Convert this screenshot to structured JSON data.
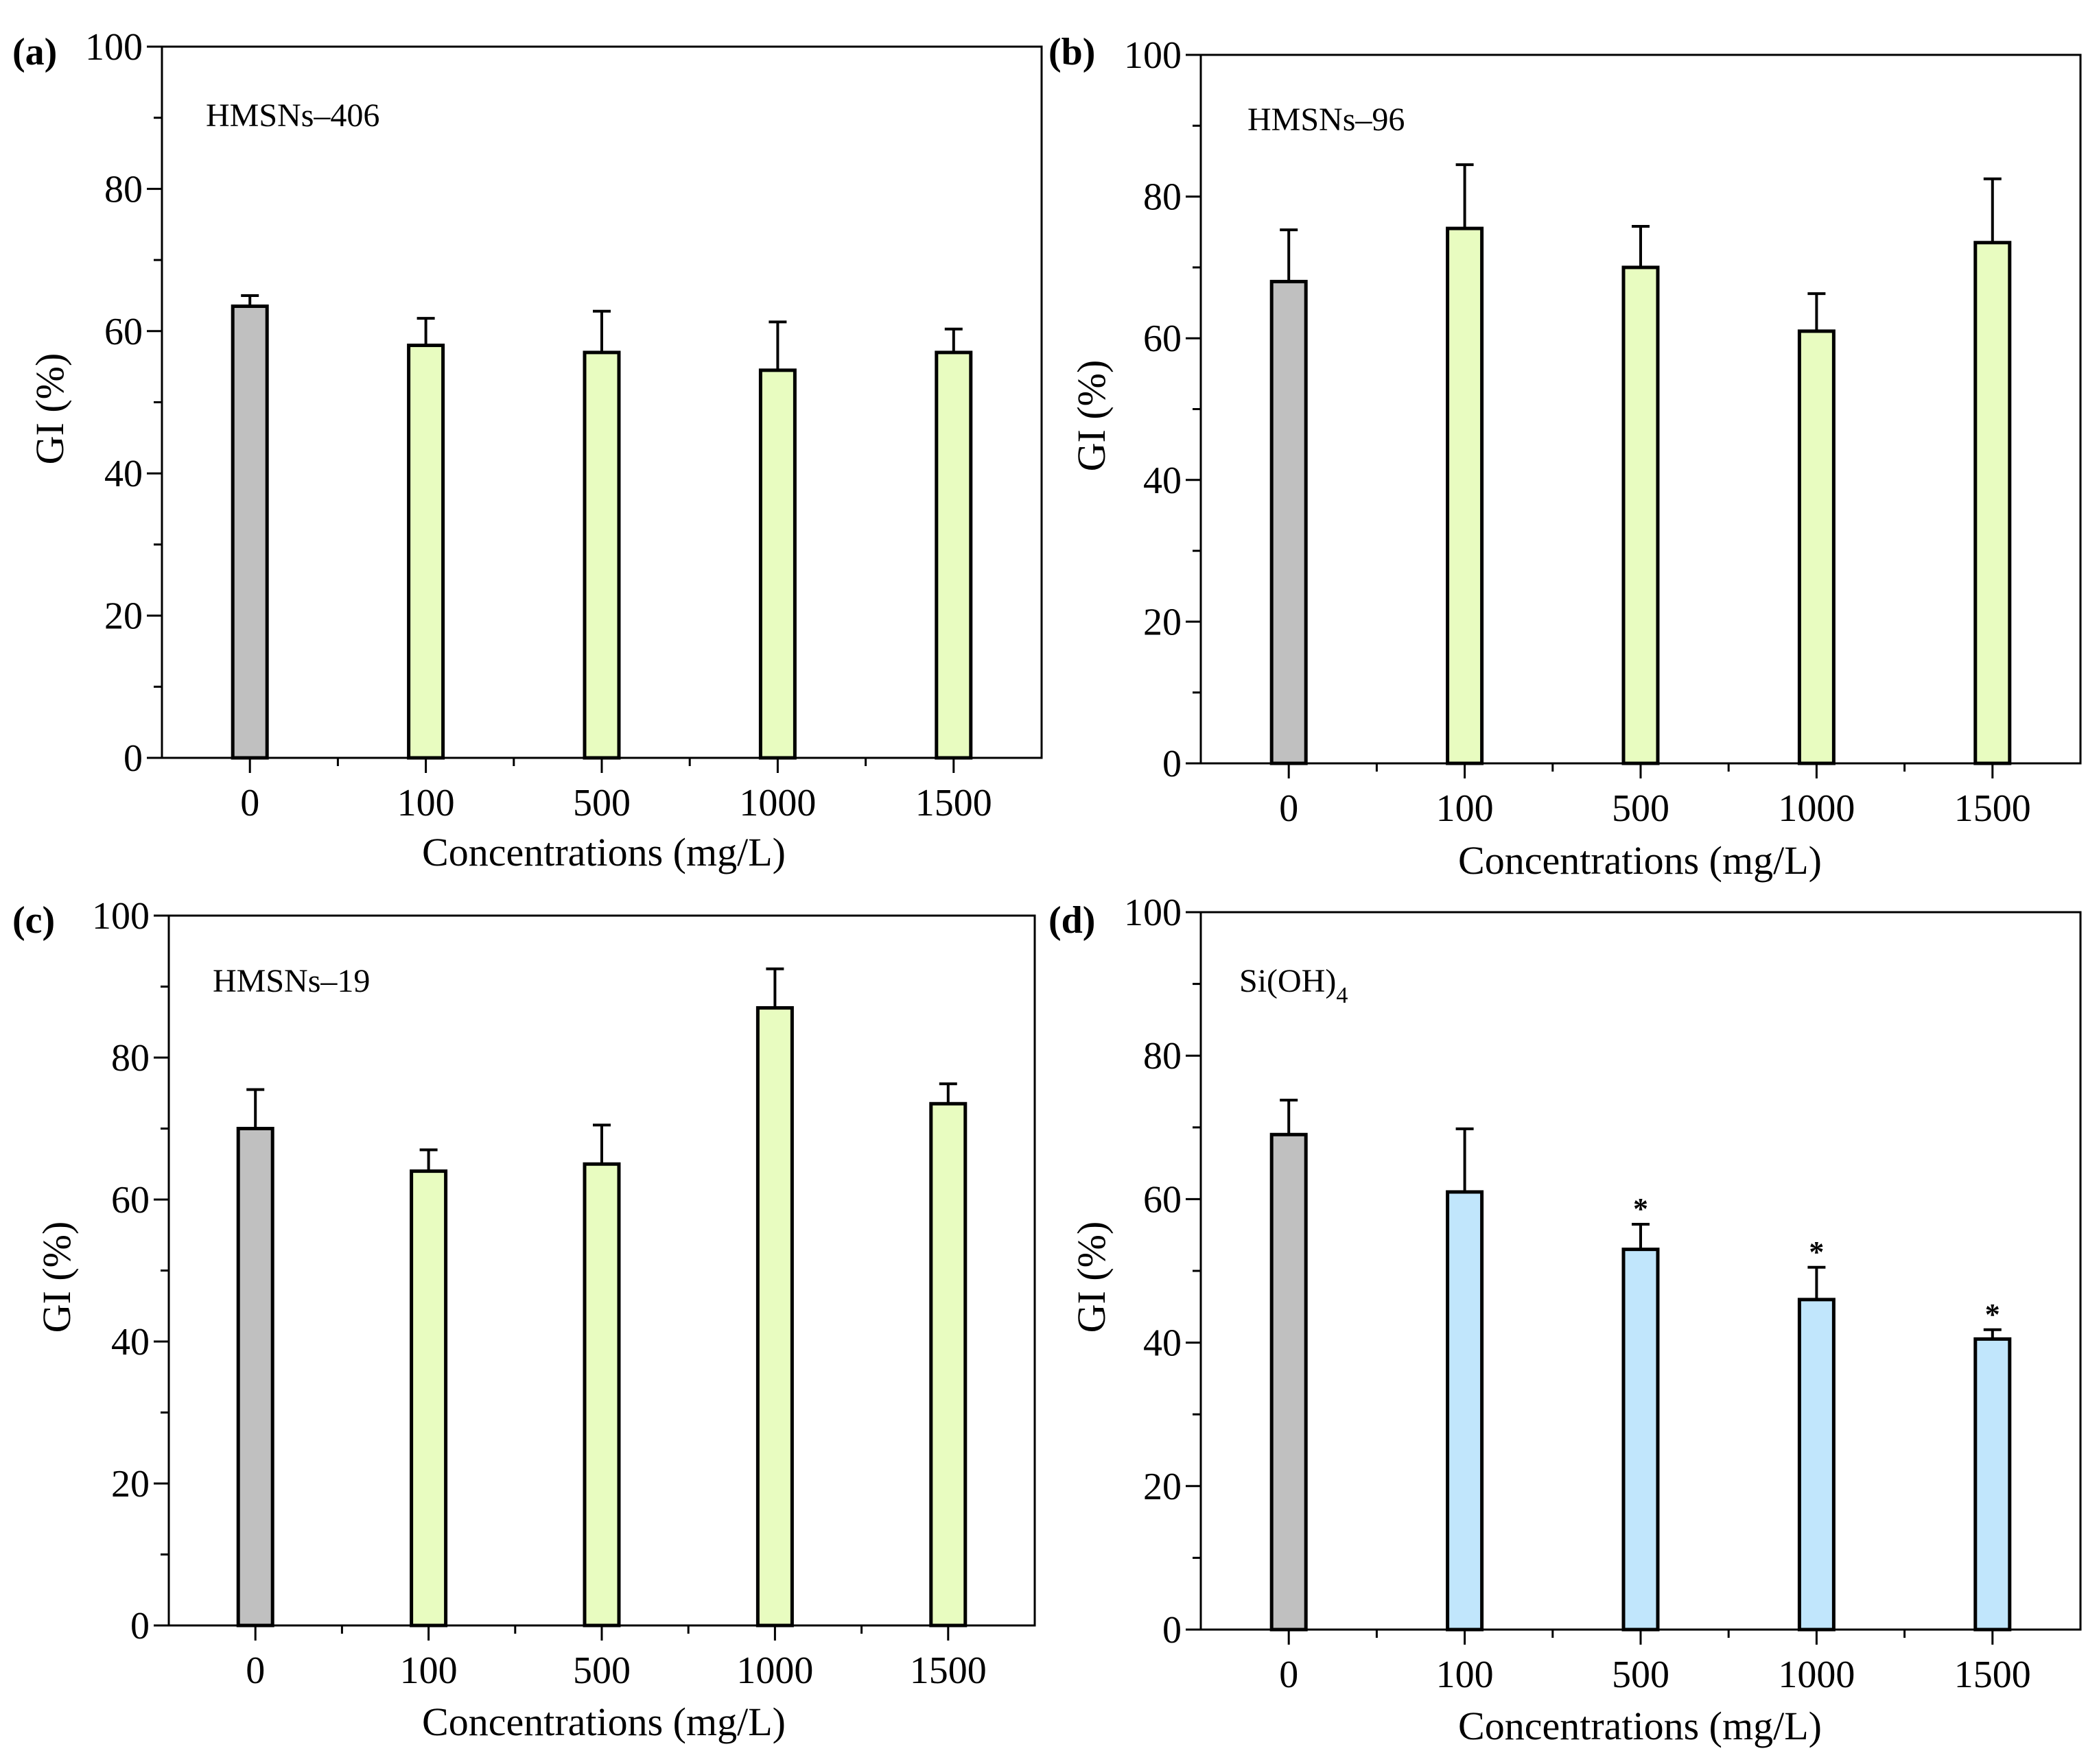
{
  "figure": {
    "colors": {
      "control": "#c0c0c0",
      "green": "#e8fcc0",
      "blue": "#c1e6fc",
      "stroke": "#000000"
    }
  },
  "chart_data": [
    {
      "type": "bar",
      "panel": "(a)",
      "sample_label": "HMSNs–406",
      "categories": [
        "0",
        "100",
        "500",
        "1000",
        "1500"
      ],
      "values": [
        63.5,
        58.0,
        57.0,
        54.5,
        57.0
      ],
      "errors": [
        1.5,
        3.8,
        5.8,
        6.8,
        3.3
      ],
      "fills": [
        "control",
        "green",
        "green",
        "green",
        "green"
      ],
      "markers": [
        "",
        "",
        "",
        "",
        ""
      ],
      "xlabel": "Concentrations (mg/L)",
      "ylabel": "GI (%)",
      "ylim": [
        0,
        100
      ],
      "yticks": [
        0,
        20,
        40,
        60,
        80,
        100
      ]
    },
    {
      "type": "bar",
      "panel": "(b)",
      "sample_label": "HMSNs–96",
      "categories": [
        "0",
        "100",
        "500",
        "1000",
        "1500"
      ],
      "values": [
        68.0,
        75.5,
        70.0,
        61.0,
        73.5
      ],
      "errors": [
        7.3,
        9.0,
        5.8,
        5.3,
        9.0
      ],
      "fills": [
        "control",
        "green",
        "green",
        "green",
        "green"
      ],
      "markers": [
        "",
        "",
        "",
        "",
        ""
      ],
      "xlabel": "Concentrations (mg/L)",
      "ylabel": "GI (%)",
      "ylim": [
        0,
        100
      ],
      "yticks": [
        0,
        20,
        40,
        60,
        80,
        100
      ]
    },
    {
      "type": "bar",
      "panel": "(c)",
      "sample_label": "HMSNs–19",
      "categories": [
        "0",
        "100",
        "500",
        "1000",
        "1500"
      ],
      "values": [
        70.0,
        64.0,
        65.0,
        87.0,
        73.5
      ],
      "errors": [
        5.5,
        3.0,
        5.5,
        5.5,
        2.8
      ],
      "fills": [
        "control",
        "green",
        "green",
        "green",
        "green"
      ],
      "markers": [
        "",
        "",
        "",
        "",
        ""
      ],
      "xlabel": "Concentrations (mg/L)",
      "ylabel": "GI (%)",
      "ylim": [
        0,
        100
      ],
      "yticks": [
        0,
        20,
        40,
        60,
        80,
        100
      ]
    },
    {
      "type": "bar",
      "panel": "(d)",
      "sample_label": "Si(OH)",
      "sample_label_sub": "4",
      "categories": [
        "0",
        "100",
        "500",
        "1000",
        "1500"
      ],
      "values": [
        69.0,
        61.0,
        53.0,
        46.0,
        40.5
      ],
      "errors": [
        4.8,
        8.8,
        3.5,
        4.5,
        1.3
      ],
      "fills": [
        "control",
        "blue",
        "blue",
        "blue",
        "blue"
      ],
      "markers": [
        "",
        "",
        "*",
        "*",
        "*"
      ],
      "xlabel": "Concentrations (mg/L)",
      "ylabel": "GI (%)",
      "ylim": [
        0,
        100
      ],
      "yticks": [
        0,
        20,
        40,
        60,
        80,
        100
      ]
    }
  ]
}
